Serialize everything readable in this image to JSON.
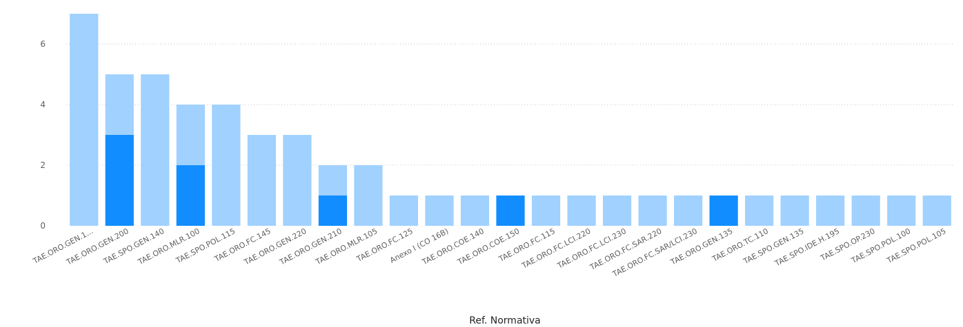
{
  "chart_data": {
    "type": "bar",
    "stacked": true,
    "xlabel": "Ref. Normativa",
    "ylabel": "",
    "ylim": [
      0,
      7
    ],
    "yticks": [
      0,
      2,
      4,
      6
    ],
    "grid": true,
    "colors": {
      "light": "#A0D1FF",
      "dark": "#118DFF"
    },
    "categories": [
      "TAE.ORO.GEN.1...",
      "TAE.ORO.GEN.200",
      "TAE.SPO.GEN.140",
      "TAE.ORO.MLR.100",
      "TAE.SPO.POL.115",
      "TAE.ORO.FC.145",
      "TAE.ORO.GEN.220",
      "TAE.ORO.GEN.210",
      "TAE.ORO.MLR.105",
      "TAE.ORO.FC.125",
      "Anexo I (CO 16B)",
      "TAE.ORO.COE.140",
      "TAE.ORO.COE.150",
      "TAE.ORO.FC.115",
      "TAE.ORO.FC.LCI.220",
      "TAE.ORO.FC.LCI.230",
      "TAE.ORO.FC.SAR.220",
      "TAE.ORO.FC.SAR/LCI.230",
      "TAE.ORO.GEN.135",
      "TAE.ORO.TC.110",
      "TAE.SPO.GEN.135",
      "TAE.SPO.IDE.H.195",
      "TAE.SPO.OP.230",
      "TAE.SPO.POL.100",
      "TAE.SPO.POL.105"
    ],
    "series": [
      {
        "color": "#118DFF",
        "values": [
          0,
          3,
          0,
          2,
          0,
          0,
          0,
          1,
          0,
          0,
          0,
          0,
          1,
          0,
          0,
          0,
          0,
          0,
          1,
          0,
          0,
          0,
          0,
          0,
          0
        ]
      },
      {
        "color": "#A0D1FF",
        "values": [
          7,
          2,
          5,
          2,
          4,
          3,
          3,
          1,
          2,
          1,
          1,
          1,
          0,
          1,
          1,
          1,
          1,
          1,
          0,
          1,
          1,
          1,
          1,
          1,
          1
        ]
      }
    ]
  }
}
